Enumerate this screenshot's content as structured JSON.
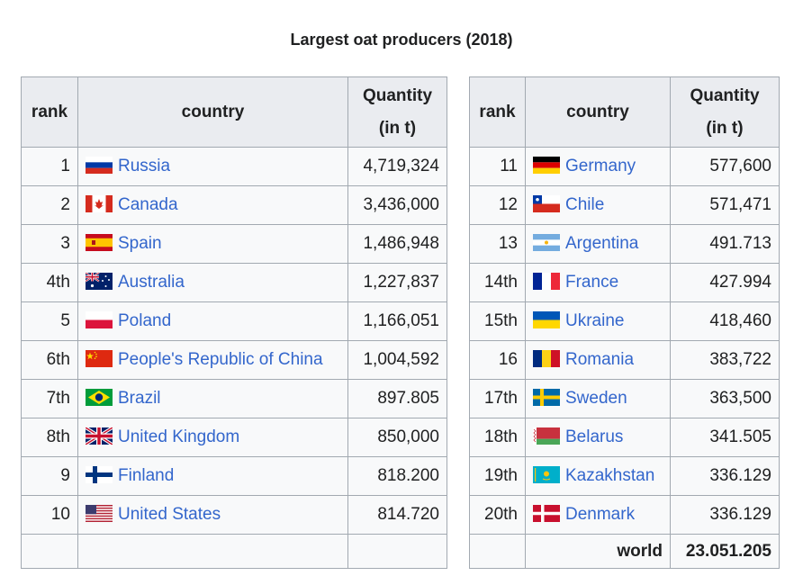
{
  "caption": "Largest oat producers (2018)",
  "headers": {
    "rank": "rank",
    "country": "country",
    "quantity": "Quantity",
    "quantity_unit": "(in t)"
  },
  "left_rows": [
    {
      "rank": "1",
      "flag": "russia-flag",
      "country": "Russia",
      "quantity": "4,719,324"
    },
    {
      "rank": "2",
      "flag": "canada-flag",
      "country": "Canada",
      "quantity": "3,436,000"
    },
    {
      "rank": "3",
      "flag": "spain-flag",
      "country": "Spain",
      "quantity": "1,486,948"
    },
    {
      "rank": "4th",
      "flag": "australia-flag",
      "country": "Australia",
      "quantity": "1,227,837"
    },
    {
      "rank": "5",
      "flag": "poland-flag",
      "country": "Poland",
      "quantity": "1,166,051"
    },
    {
      "rank": "6th",
      "flag": "china-flag",
      "country": "People's Republic of China",
      "quantity": "1,004,592"
    },
    {
      "rank": "7th",
      "flag": "brazil-flag",
      "country": "Brazil",
      "quantity": "897.805"
    },
    {
      "rank": "8th",
      "flag": "united-kingdom-flag",
      "country": "United Kingdom",
      "quantity": "850,000"
    },
    {
      "rank": "9",
      "flag": "finland-flag",
      "country": "Finland",
      "quantity": "818.200"
    },
    {
      "rank": "10",
      "flag": "united-states-flag",
      "country": "United States",
      "quantity": "814.720"
    }
  ],
  "right_rows": [
    {
      "rank": "11",
      "flag": "germany-flag",
      "country": "Germany",
      "quantity": "577,600"
    },
    {
      "rank": "12",
      "flag": "chile-flag",
      "country": "Chile",
      "quantity": "571,471"
    },
    {
      "rank": "13",
      "flag": "argentina-flag",
      "country": "Argentina",
      "quantity": "491.713"
    },
    {
      "rank": "14th",
      "flag": "france-flag",
      "country": "France",
      "quantity": "427.994"
    },
    {
      "rank": "15th",
      "flag": "ukraine-flag",
      "country": "Ukraine",
      "quantity": "418,460"
    },
    {
      "rank": "16",
      "flag": "romania-flag",
      "country": "Romania",
      "quantity": "383,722"
    },
    {
      "rank": "17th",
      "flag": "sweden-flag",
      "country": "Sweden",
      "quantity": "363,500"
    },
    {
      "rank": "18th",
      "flag": "belarus-flag",
      "country": "Belarus",
      "quantity": "341.505"
    },
    {
      "rank": "19th",
      "flag": "kazakhstan-flag",
      "country": "Kazakhstan",
      "quantity": "336.129"
    },
    {
      "rank": "20th",
      "flag": "denmark-flag",
      "country": "Denmark",
      "quantity": "336.129"
    }
  ],
  "world": {
    "label": "world",
    "quantity": "23.051.205"
  },
  "colors": {
    "link": "#3366cc",
    "header_bg": "#eaecf0",
    "cell_bg": "#f8f9fa",
    "border": "#a2a9b1"
  }
}
